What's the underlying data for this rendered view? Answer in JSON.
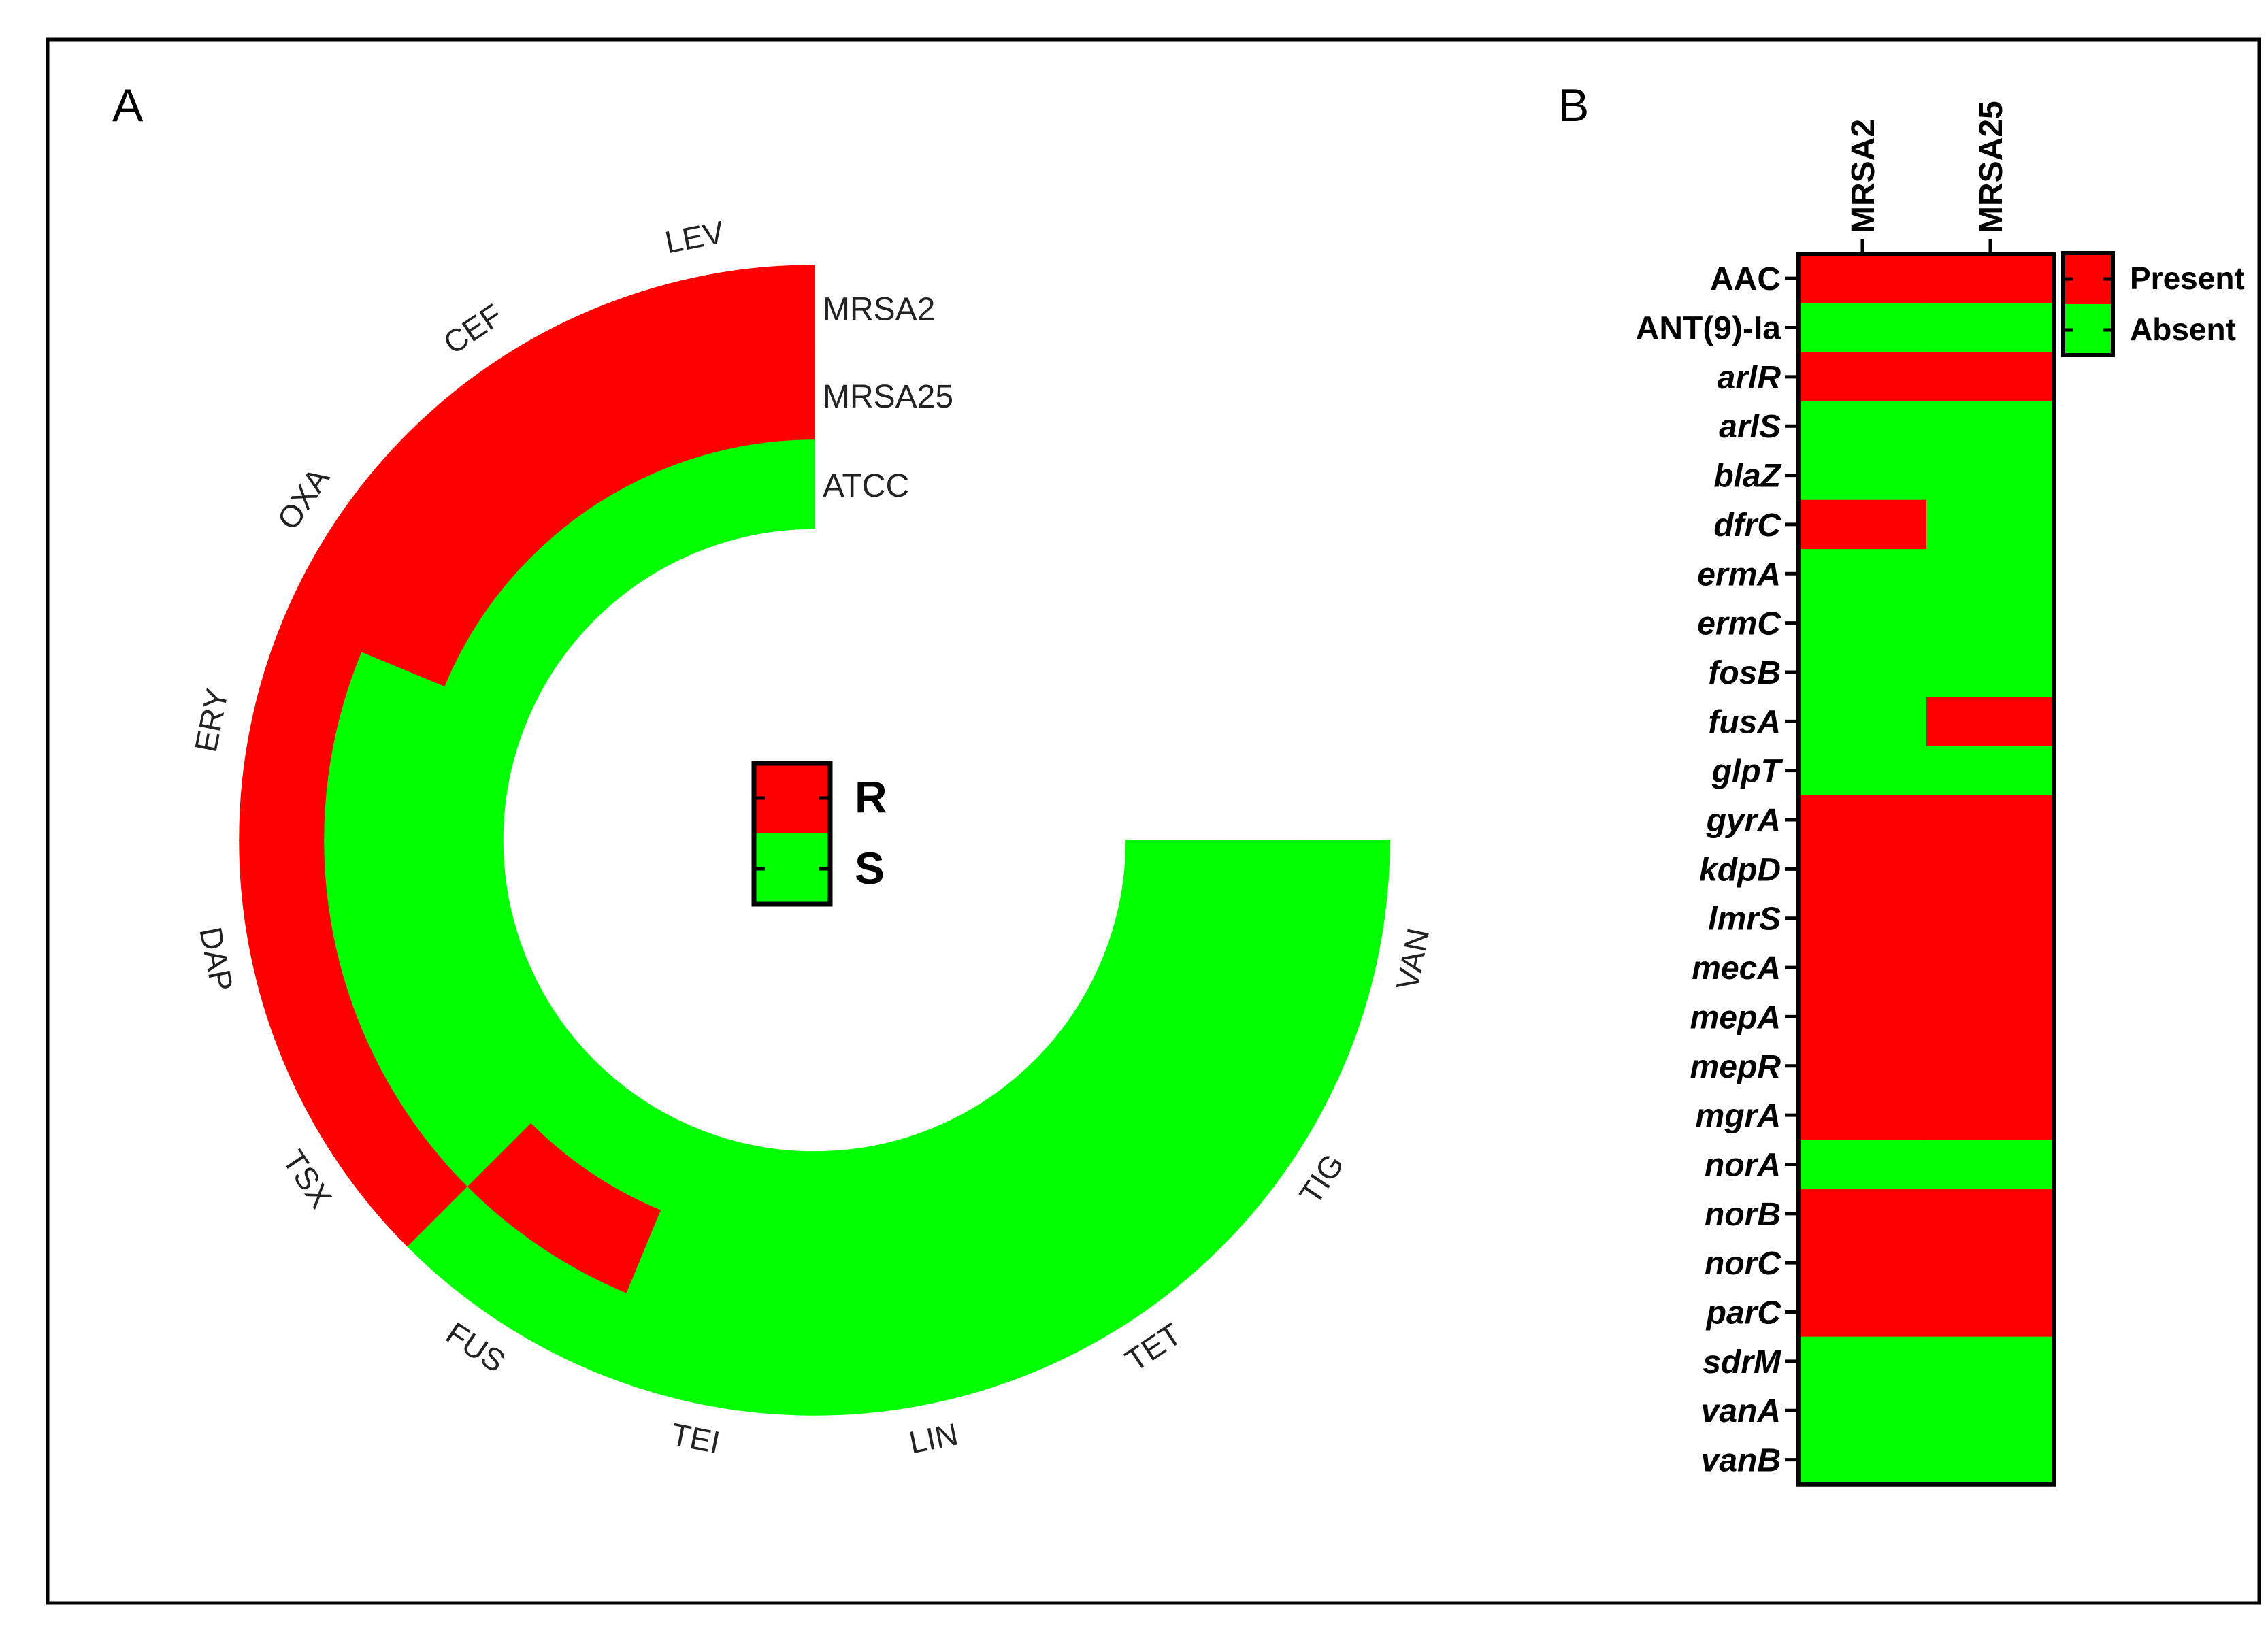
{
  "chart_data": [
    {
      "type": "heatmap",
      "panel_label": "A",
      "layout": "circular",
      "rings": [
        "MRSA2",
        "MRSA25",
        "ATCC"
      ],
      "antibiotics": [
        "LEV",
        "CEF",
        "OXA",
        "ERY",
        "DAP",
        "TSX",
        "FUS",
        "TEI",
        "LIN",
        "TET",
        "TIG",
        "VAN"
      ],
      "values": [
        [
          "R",
          "R",
          "R",
          "R",
          "R",
          "R",
          "S",
          "S",
          "S",
          "S",
          "S",
          "S"
        ],
        [
          "R",
          "R",
          "R",
          "S",
          "S",
          "S",
          "R",
          "S",
          "S",
          "S",
          "S",
          "S"
        ],
        [
          "S",
          "S",
          "S",
          "S",
          "S",
          "S",
          "S",
          "S",
          "S",
          "S",
          "S",
          "S"
        ]
      ],
      "legend": [
        {
          "key": "R",
          "label": "R",
          "color": "#ff0000"
        },
        {
          "key": "S",
          "label": "S",
          "color": "#00ff00"
        }
      ]
    },
    {
      "type": "heatmap",
      "panel_label": "B",
      "columns": [
        "MRSA2",
        "MRSA25"
      ],
      "rows": [
        "AAC",
        "ANT(9)-Ia",
        "arlR",
        "arlS",
        "blaZ",
        "dfrC",
        "ermA",
        "ermC",
        "fosB",
        "fusA",
        "glpT",
        "gyrA",
        "kdpD",
        "lmrS",
        "mecA",
        "mepA",
        "mepR",
        "mgrA",
        "norA",
        "norB",
        "norC",
        "parC",
        "sdrM",
        "vanA",
        "vanB"
      ],
      "italic_rows": [
        "arlR",
        "arlS",
        "blaZ",
        "dfrC",
        "ermA",
        "ermC",
        "fosB",
        "fusA",
        "glpT",
        "gyrA",
        "kdpD",
        "lmrS",
        "mecA",
        "mepA",
        "mepR",
        "mgrA",
        "norA",
        "norB",
        "norC",
        "parC",
        "sdrM",
        "vanA",
        "vanB"
      ],
      "values": [
        [
          1,
          1
        ],
        [
          0,
          0
        ],
        [
          1,
          1
        ],
        [
          0,
          0
        ],
        [
          0,
          0
        ],
        [
          1,
          0
        ],
        [
          0,
          0
        ],
        [
          0,
          0
        ],
        [
          0,
          0
        ],
        [
          0,
          1
        ],
        [
          0,
          0
        ],
        [
          1,
          1
        ],
        [
          1,
          1
        ],
        [
          1,
          1
        ],
        [
          1,
          1
        ],
        [
          1,
          1
        ],
        [
          1,
          1
        ],
        [
          1,
          1
        ],
        [
          0,
          0
        ],
        [
          1,
          1
        ],
        [
          1,
          1
        ],
        [
          1,
          1
        ],
        [
          0,
          0
        ],
        [
          0,
          0
        ],
        [
          0,
          0
        ]
      ],
      "legend": [
        {
          "value": 1,
          "label": "Present",
          "color": "#ff0000"
        },
        {
          "value": 0,
          "label": "Absent",
          "color": "#00ff00"
        }
      ]
    }
  ]
}
